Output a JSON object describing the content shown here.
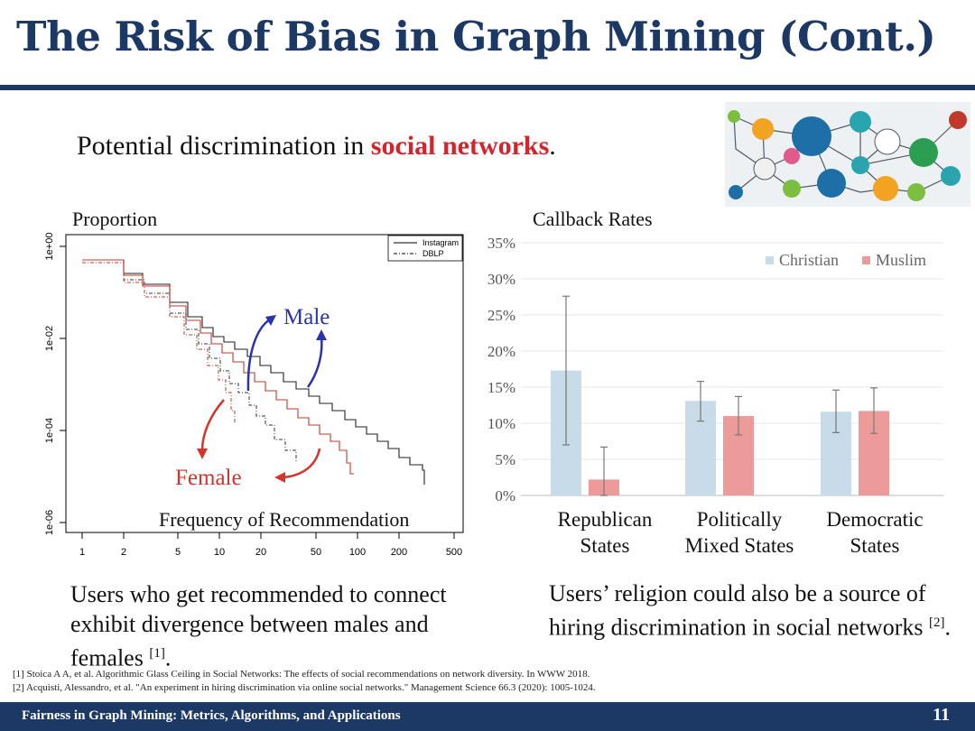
{
  "slide": {
    "title": "The Risk of Bias in Graph Mining (Cont.)",
    "subtitle_pre": "Potential discrimination in ",
    "subtitle_highlight": "social networks",
    "subtitle_post": ".",
    "footer": "Fairness in Graph Mining: Metrics, Algorithms, and Applications",
    "page_number": "11",
    "colors": {
      "navy": "#1c3966",
      "red": "#d4232b",
      "male_arrow": "#2a34a8",
      "female_arrow": "#d6332c"
    }
  },
  "left_figure": {
    "ylabel": "Proportion",
    "xlabel": "Frequency of Recommendation",
    "y_ticks": [
      "1e+00",
      "1e-02",
      "1e-04",
      "1e-06"
    ],
    "x_ticks": [
      "1",
      "2",
      "5",
      "10",
      "20",
      "50",
      "100",
      "200",
      "500"
    ],
    "legend": [
      "Instagram",
      "DBLP"
    ],
    "male_label": "Male",
    "female_label": "Female",
    "caption": "Users who get recommended to connect exhibit divergence between males and females",
    "caption_ref": "[1]",
    "caption_end": "."
  },
  "chart_data": {
    "type": "bar",
    "title": "Callback Rates",
    "categories": [
      {
        "line1": "Republican",
        "line2": "States"
      },
      {
        "line1": "Politically",
        "line2": "Mixed States"
      },
      {
        "line1": "Democratic",
        "line2": "States"
      }
    ],
    "series": [
      {
        "name": "Christian",
        "color": "#c7dbe9",
        "values": [
          17.3,
          13.1,
          11.6
        ],
        "err_low": [
          7.0,
          10.3,
          8.7
        ],
        "err_high": [
          27.6,
          15.8,
          14.6
        ]
      },
      {
        "name": "Muslim",
        "color": "#ec9a9a",
        "values": [
          2.2,
          11.0,
          11.7
        ],
        "err_low": [
          0.0,
          8.4,
          8.6
        ],
        "err_high": [
          6.7,
          13.7,
          14.9
        ]
      }
    ],
    "y_ticks": [
      "0%",
      "5%",
      "10%",
      "15%",
      "20%",
      "25%",
      "30%",
      "35%"
    ],
    "ylim": [
      0,
      35
    ],
    "legend_position": "top-right",
    "caption": "Users’ religion could also be a source of hiring discrimination in social networks",
    "caption_ref": "[2]",
    "caption_end": "."
  },
  "references": [
    "[1] Stoica A A, et al. Algorithmic Glass Ceiling in Social Networks: The effects of social recommendations on network diversity. In WWW 2018.",
    "[2] Acquisti, Alessandro, et al. \"An experiment in hiring discrimination via online social networks.\" Management Science 66.3 (2020): 1005-1024."
  ]
}
